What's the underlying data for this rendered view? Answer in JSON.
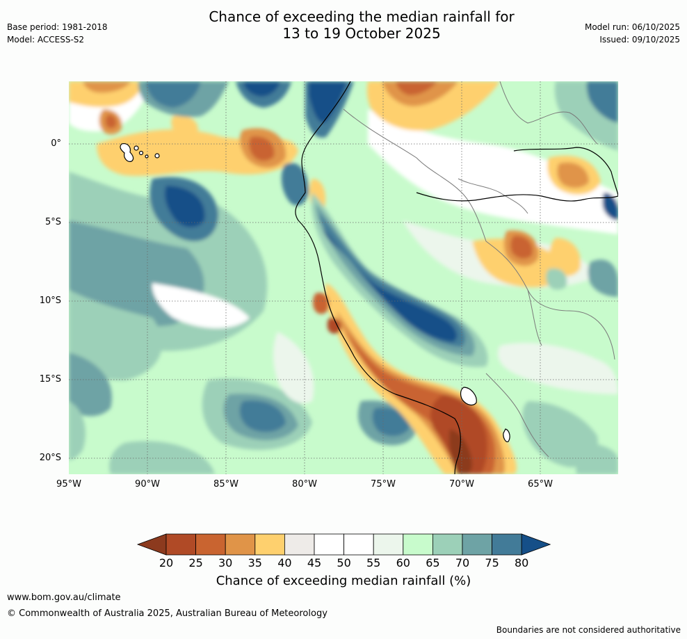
{
  "header": {
    "base_period": "Base period: 1981-2018",
    "model": "Model: ACCESS-S2",
    "title_line1": "Chance of exceeding the median rainfall for",
    "title_line2": "13 to 19 October 2025",
    "model_run": "Model run: 06/10/2025",
    "issued": "Issued: 09/10/2025"
  },
  "map": {
    "lat_labels": [
      "0°",
      "5°S",
      "10°S",
      "15°S",
      "20°S"
    ],
    "lon_labels": [
      "95°W",
      "90°W",
      "85°W",
      "80°W",
      "75°W",
      "70°W",
      "65°W"
    ]
  },
  "colorbar": {
    "ticks": [
      "20",
      "25",
      "30",
      "35",
      "40",
      "45",
      "50",
      "55",
      "60",
      "65",
      "70",
      "75",
      "80"
    ],
    "colors": [
      "#8c3a1e",
      "#b04a26",
      "#c96430",
      "#e09448",
      "#fed06e",
      "#eeebe8",
      "#ffffff",
      "#ffffff",
      "#ecf6ec",
      "#c8fbcc",
      "#9cd0b8",
      "#6ea3a5",
      "#427b98",
      "#154f88"
    ],
    "title": "Chance of exceeding median rainfall (%)"
  },
  "footer": {
    "url": "www.bom.gov.au/climate",
    "copyright": "© Commonwealth of Australia 2025, Australian Bureau of Meteorology",
    "disclaimer": "Boundaries are not considered authoritative"
  }
}
